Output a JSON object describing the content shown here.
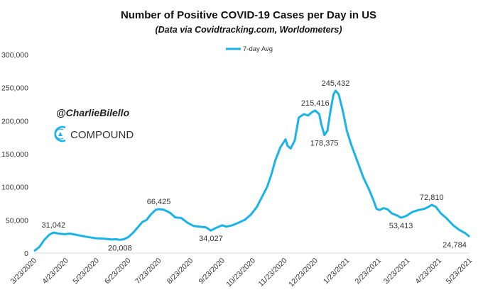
{
  "chart_data": {
    "type": "line",
    "title": "Number of Positive COVID-19 Cases per Day in US",
    "subtitle": "(Data via Covidtracking.com, Worldometers)",
    "xlabel": "",
    "ylabel": "",
    "ylim": [
      0,
      300000
    ],
    "yticks": [
      0,
      50000,
      100000,
      150000,
      200000,
      250000,
      300000
    ],
    "ytick_labels": [
      "0",
      "50,000",
      "100,000",
      "150,000",
      "200,000",
      "250,000",
      "300,000"
    ],
    "xtick_labels": [
      "3/23/2020",
      "4/23/2020",
      "5/23/2020",
      "6/23/2020",
      "7/23/2020",
      "8/23/2020",
      "9/23/2020",
      "10/23/2020",
      "11/23/2020",
      "12/23/2020",
      "1/23/2021",
      "2/23/2021",
      "3/23/2021",
      "4/23/2021",
      "5/23/2021"
    ],
    "x_start": "2020-03-23",
    "x_end": "2021-05-23",
    "grid": false,
    "legend": {
      "position": "top-center",
      "entries": [
        "7-day Avg"
      ]
    },
    "colors": {
      "line": "#1ab3e8",
      "axis": "#d9d9d9"
    },
    "series": [
      {
        "name": "7-day Avg",
        "days_since_start": [
          0,
          5,
          10,
          15,
          19,
          24,
          30,
          35,
          40,
          50,
          60,
          70,
          76,
          80,
          84,
          88,
          92,
          97,
          102,
          106,
          110,
          114,
          119,
          122,
          127,
          133,
          138,
          144,
          150,
          156,
          162,
          168,
          173,
          178,
          184,
          188,
          194,
          200,
          206,
          212,
          218,
          223,
          228,
          232,
          236,
          241,
          246,
          248,
          251,
          255,
          259,
          264,
          268,
          272,
          275,
          279,
          281,
          284,
          287,
          290,
          293,
          295,
          298,
          302,
          306,
          310,
          316,
          322,
          328,
          332,
          335,
          338,
          342,
          346,
          350,
          355,
          359,
          364,
          370,
          376,
          382,
          386,
          389,
          393,
          398,
          404,
          410,
          416,
          422,
          426
        ],
        "values": [
          3000,
          9000,
          20000,
          28000,
          31042,
          29500,
          28500,
          29500,
          28000,
          25000,
          22500,
          21500,
          20500,
          21000,
          20008,
          21000,
          24000,
          31000,
          40000,
          47000,
          50000,
          58000,
          65500,
          66425,
          65500,
          61000,
          54000,
          53000,
          46000,
          41000,
          40000,
          39000,
          34027,
          38000,
          42000,
          40000,
          42000,
          46000,
          50000,
          58000,
          70000,
          85000,
          100000,
          118000,
          140000,
          160000,
          172000,
          162000,
          158000,
          170000,
          205000,
          210000,
          208000,
          213000,
          215416,
          210000,
          195000,
          178375,
          185000,
          215000,
          240000,
          245432,
          240000,
          215000,
          185000,
          165000,
          140000,
          115000,
          95000,
          80000,
          67000,
          65000,
          68000,
          66000,
          60000,
          57000,
          53413,
          56000,
          62000,
          65000,
          67000,
          70000,
          72810,
          70000,
          60000,
          52000,
          42000,
          35000,
          30000,
          24784
        ]
      }
    ],
    "annotations": [
      {
        "day": 19,
        "value": 31042,
        "text": "31,042",
        "placement": "above"
      },
      {
        "day": 84,
        "value": 20008,
        "text": "20,008",
        "placement": "below"
      },
      {
        "day": 122,
        "value": 66425,
        "text": "66,425",
        "placement": "above"
      },
      {
        "day": 173,
        "value": 34027,
        "text": "34,027",
        "placement": "below"
      },
      {
        "day": 275,
        "value": 215416,
        "text": "215,416",
        "placement": "above"
      },
      {
        "day": 284,
        "value": 178375,
        "text": "178,375",
        "placement": "below"
      },
      {
        "day": 295,
        "value": 245432,
        "text": "245,432",
        "placement": "above"
      },
      {
        "day": 359,
        "value": 53413,
        "text": "53,413",
        "placement": "below"
      },
      {
        "day": 389,
        "value": 72810,
        "text": "72,810",
        "placement": "above"
      },
      {
        "day": 426,
        "value": 24784,
        "text": "24,784",
        "placement": "below"
      }
    ]
  },
  "watermark": {
    "handle": "@CharlieBilello",
    "brand": "COMPOUND"
  }
}
